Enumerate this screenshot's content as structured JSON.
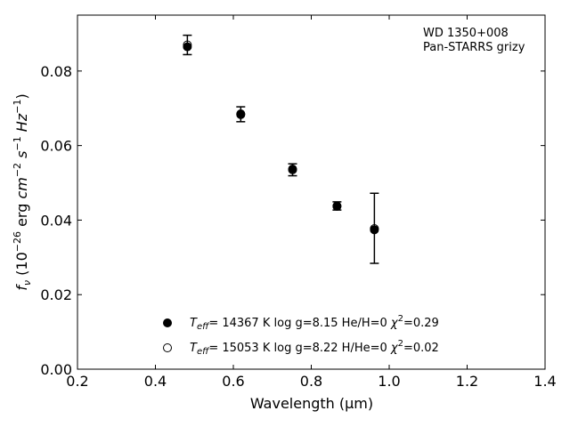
{
  "chart_data": {
    "type": "scatter",
    "title": "",
    "xlabel": "Wavelength (μm)",
    "ylabel": "f_ν (10^-26 erg cm^-2 s^-1 Hz^-1)",
    "xlim": [
      0.2,
      1.4
    ],
    "ylim": [
      0.0,
      0.095
    ],
    "x_ticks": [
      0.2,
      0.4,
      0.6,
      0.8,
      1.0,
      1.2,
      1.4
    ],
    "x_tick_labels": [
      "0.2",
      "0.4",
      "0.6",
      "0.8",
      "1.0",
      "1.2",
      "1.4"
    ],
    "y_ticks": [
      0.0,
      0.02,
      0.04,
      0.06,
      0.08
    ],
    "y_tick_labels": [
      "0.00",
      "0.02",
      "0.04",
      "0.06",
      "0.08"
    ],
    "grid": false,
    "legend_position": "lower-center",
    "annotation": {
      "line1": "WD 1350+008",
      "line2": "Pan-STARRS grizy"
    },
    "observed": {
      "x": [
        0.482,
        0.619,
        0.752,
        0.866,
        0.962
      ],
      "y": [
        0.087,
        0.0684,
        0.0535,
        0.0438,
        0.0378
      ],
      "err": [
        0.0026,
        0.002,
        0.0016,
        0.0011,
        0.0094
      ]
    },
    "series": [
      {
        "name": "Teff= 14367 K  log g=8.15  He/H=0  χ2=0.29",
        "marker": "filled-circle",
        "color": "#000000",
        "x": [
          0.482,
          0.619,
          0.752,
          0.866,
          0.962
        ],
        "y": [
          0.0865,
          0.0685,
          0.0537,
          0.0437,
          0.0374
        ]
      },
      {
        "name": "Teff= 15053 K  log g=8.22  H/He=0  χ2=0.02",
        "marker": "open-circle",
        "color": "#000000",
        "x": [
          0.482,
          0.619,
          0.752,
          0.866,
          0.962
        ],
        "y": [
          0.087,
          0.0683,
          0.0535,
          0.0438,
          0.0377
        ]
      }
    ]
  }
}
